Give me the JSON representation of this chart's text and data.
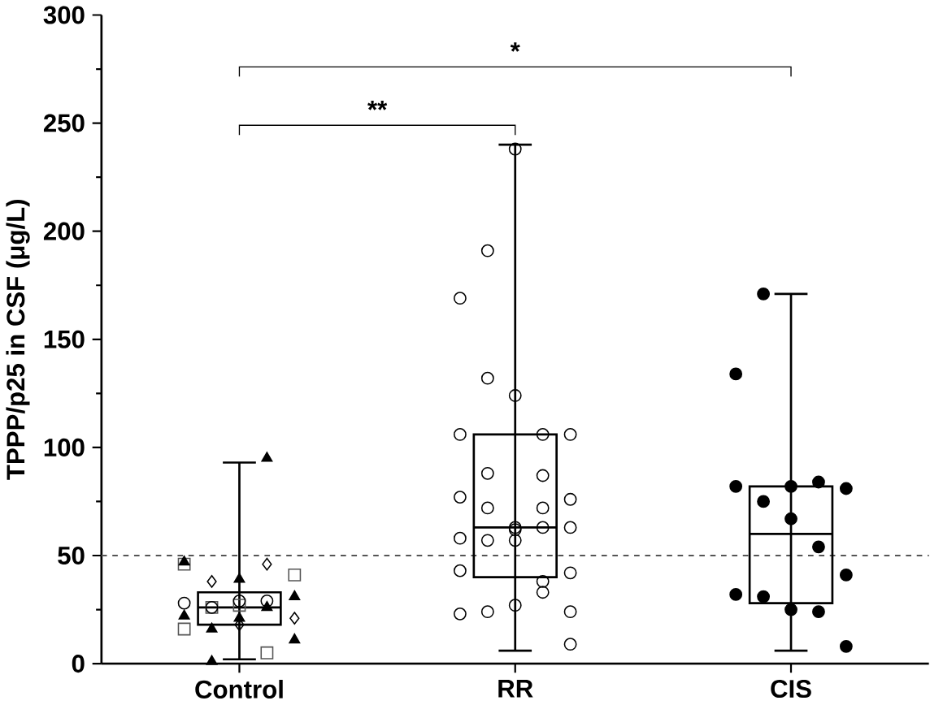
{
  "chart_data": {
    "type": "box",
    "ylabel": "TPPP/p25 in CSF (μg/L)",
    "categories": [
      "Control",
      "RR",
      "CIS"
    ],
    "boxes": [
      {
        "low": 2,
        "q1": 18,
        "median": 26,
        "q3": 33,
        "high": 93
      },
      {
        "low": 6,
        "q1": 40,
        "median": 63,
        "q3": 106,
        "high": 240
      },
      {
        "low": 6,
        "q1": 28,
        "median": 60,
        "q3": 82,
        "high": 171
      }
    ],
    "series": [
      {
        "type": "scatter",
        "marker": "square",
        "color": "#555555",
        "x": [
          "Control",
          "Control",
          "Control",
          "Control",
          "Control",
          "Control"
        ],
        "values": [
          46,
          26,
          27,
          5,
          41,
          16
        ]
      },
      {
        "type": "scatter",
        "marker": "diamond",
        "color": "#000000",
        "x": [
          "Control",
          "Control",
          "Control",
          "Control"
        ],
        "values": [
          38,
          18,
          46,
          21
        ]
      },
      {
        "type": "scatter",
        "marker": "circle",
        "color": "#000000",
        "x": [
          "Control",
          "Control",
          "Control",
          "Control"
        ],
        "values": [
          28,
          26,
          29,
          29
        ]
      },
      {
        "type": "scatter",
        "marker": "triangle",
        "color": "#000000",
        "x": [
          "Control",
          "Control",
          "Control",
          "Control",
          "Control",
          "Control",
          "Control",
          "Control",
          "Control",
          "Control"
        ],
        "values": [
          31,
          22,
          1,
          39,
          26,
          11,
          47,
          16,
          21,
          95
        ]
      },
      {
        "type": "scatter",
        "marker": "circle",
        "color": "#000000",
        "x": [
          "RR",
          "RR",
          "RR",
          "RR",
          "RR",
          "RR",
          "RR",
          "RR",
          "RR",
          "RR",
          "RR",
          "RR",
          "RR",
          "RR",
          "RR",
          "RR",
          "RR",
          "RR",
          "RR",
          "RR",
          "RR",
          "RR",
          "RR",
          "RR",
          "RR",
          "RR",
          "RR",
          "RR",
          "RR",
          "RR"
        ],
        "values": [
          169,
          191,
          238,
          106,
          106,
          106,
          88,
          124,
          87,
          76,
          77,
          72,
          63,
          63,
          63,
          58,
          57,
          57,
          38,
          42,
          43,
          24,
          27,
          33,
          9,
          23,
          132,
          62,
          72,
          24
        ]
      },
      {
        "type": "scatter",
        "marker": "circle",
        "color": "#000000",
        "x": [
          "CIS",
          "CIS",
          "CIS",
          "CIS",
          "CIS",
          "CIS",
          "CIS",
          "CIS",
          "CIS",
          "CIS",
          "CIS",
          "CIS",
          "CIS",
          "CIS",
          "CIS"
        ],
        "values": [
          134,
          171,
          82,
          84,
          81,
          82,
          75,
          67,
          54,
          41,
          32,
          31,
          25,
          24,
          8
        ]
      }
    ],
    "ylim": [
      0,
      300
    ],
    "yticks": [
      0,
      50,
      100,
      150,
      200,
      250,
      300
    ],
    "ref_lines": [
      {
        "axis": "y",
        "value": 50,
        "line_style": "dashed",
        "color": "#555555"
      }
    ],
    "annotations": [
      "**",
      "*"
    ]
  }
}
